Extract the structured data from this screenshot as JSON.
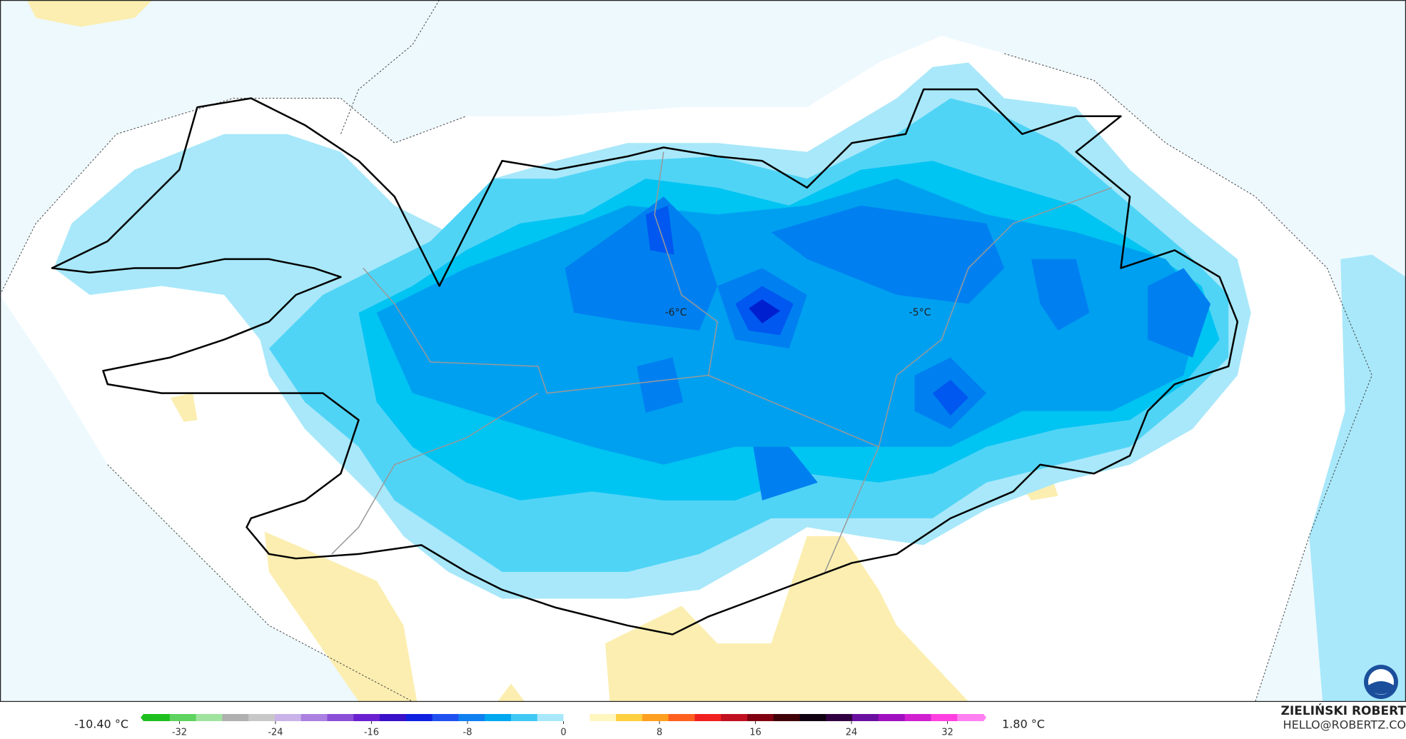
{
  "map": {
    "labels": [
      {
        "text": "-6°C"
      },
      {
        "text": "-5°C"
      }
    ],
    "colorbar": {
      "min_label": "-10.40 °C",
      "max_label": "1.80 °C",
      "lim": [
        -35,
        35
      ],
      "ticks": [
        -32,
        -24,
        -16,
        -8,
        0,
        8,
        16,
        24,
        32
      ],
      "colors": [
        "#1fbf1f",
        "#5fd35f",
        "#9fe39f",
        "#b0b0b0",
        "#c8c8c8",
        "#c9b3e8",
        "#ab80e0",
        "#8c4fd8",
        "#6a20d0",
        "#3a10c8",
        "#1020e0",
        "#2050f0",
        "#1080f0",
        "#00a8f0",
        "#40c8f5",
        "#a8e8fa",
        "#ffffff",
        "#fff6c0",
        "#ffd040",
        "#ffa020",
        "#ff6020",
        "#f02020",
        "#c01020",
        "#800010",
        "#400008",
        "#100010",
        "#300040",
        "#6a10a0",
        "#a010c0",
        "#d020d0",
        "#ff40e0",
        "#ff80f0"
      ]
    },
    "credit": {
      "name": "ZIELIŃSKI ROBERT",
      "email": "HELLO@ROBERTZ.CO"
    }
  }
}
